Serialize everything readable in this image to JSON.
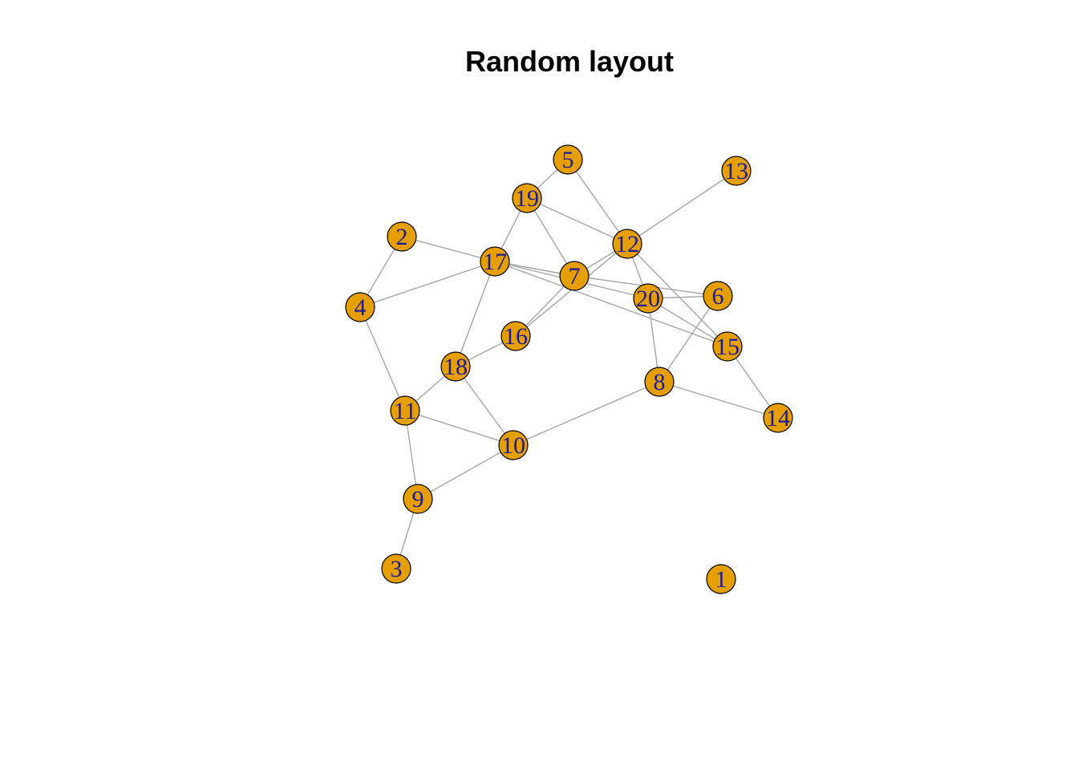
{
  "title": "Random layout",
  "colors": {
    "node_fill": "#E69F00",
    "label": "#1a1aa0",
    "edge": "#a6a6a6"
  },
  "graph": {
    "nodes": [
      {
        "id": "1"
      },
      {
        "id": "2"
      },
      {
        "id": "3"
      },
      {
        "id": "4"
      },
      {
        "id": "5"
      },
      {
        "id": "6"
      },
      {
        "id": "7"
      },
      {
        "id": "8"
      },
      {
        "id": "9"
      },
      {
        "id": "10"
      },
      {
        "id": "11"
      },
      {
        "id": "12"
      },
      {
        "id": "13"
      },
      {
        "id": "14"
      },
      {
        "id": "15"
      },
      {
        "id": "16"
      },
      {
        "id": "17"
      },
      {
        "id": "18"
      },
      {
        "id": "19"
      },
      {
        "id": "20"
      }
    ],
    "edges": [
      [
        "5",
        "19"
      ],
      [
        "5",
        "12"
      ],
      [
        "19",
        "17"
      ],
      [
        "19",
        "7"
      ],
      [
        "19",
        "12"
      ],
      [
        "13",
        "12"
      ],
      [
        "2",
        "17"
      ],
      [
        "2",
        "4"
      ],
      [
        "4",
        "17"
      ],
      [
        "4",
        "11"
      ],
      [
        "17",
        "7"
      ],
      [
        "17",
        "18"
      ],
      [
        "17",
        "20"
      ],
      [
        "17",
        "15"
      ],
      [
        "7",
        "12"
      ],
      [
        "7",
        "16"
      ],
      [
        "7",
        "6"
      ],
      [
        "12",
        "16"
      ],
      [
        "12",
        "20"
      ],
      [
        "12",
        "15"
      ],
      [
        "20",
        "6"
      ],
      [
        "20",
        "8"
      ],
      [
        "20",
        "15"
      ],
      [
        "6",
        "8"
      ],
      [
        "15",
        "14"
      ],
      [
        "8",
        "14"
      ],
      [
        "8",
        "10"
      ],
      [
        "16",
        "18"
      ],
      [
        "18",
        "11"
      ],
      [
        "18",
        "10"
      ],
      [
        "11",
        "10"
      ],
      [
        "11",
        "9"
      ],
      [
        "10",
        "9"
      ],
      [
        "9",
        "3"
      ]
    ]
  }
}
